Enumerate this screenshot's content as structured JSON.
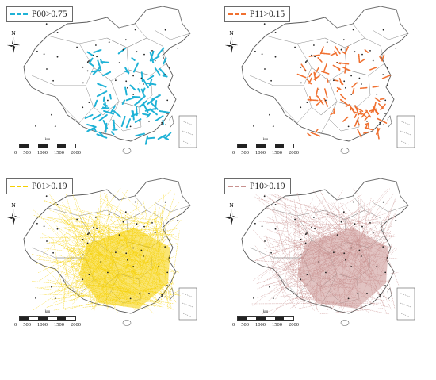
{
  "panels": [
    {
      "label": "P00>0.75",
      "color": "#1fb2d6",
      "type": "segments"
    },
    {
      "label": "P11>0.15",
      "color": "#f07030",
      "type": "segments"
    },
    {
      "label": "P01>0.19",
      "color": "#f5d000",
      "type": "flows"
    },
    {
      "label": "P10>0.19",
      "color": "#c8918f",
      "type": "flows"
    }
  ],
  "north": "N",
  "scale": {
    "unit": "km",
    "ticks": [
      "0",
      "500",
      "1000",
      "1500",
      "2000"
    ]
  }
}
